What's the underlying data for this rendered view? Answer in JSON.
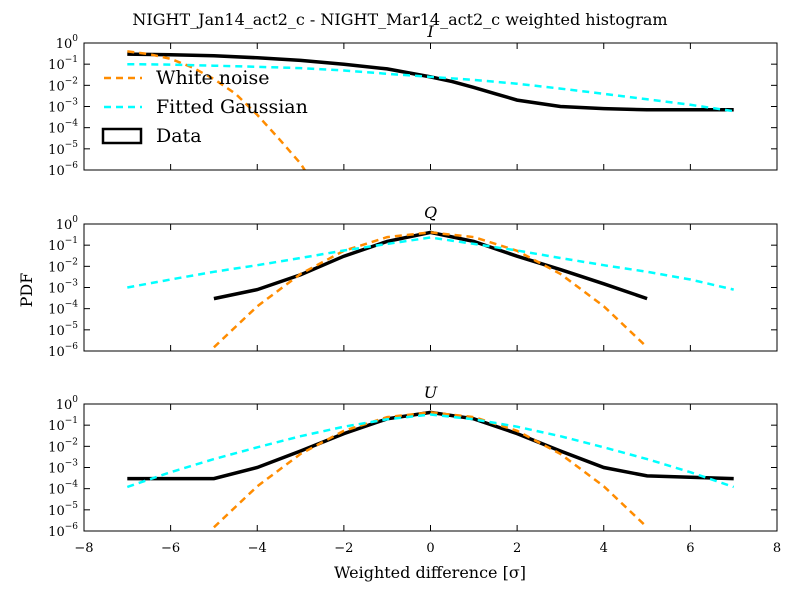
{
  "figure": {
    "suptitle": "NIGHT_Jan14_act2_c - NIGHT_Mar14_act2_c weighted histogram",
    "xlabel": "Weighted difference [σ]",
    "ylabel": "PDF"
  },
  "legend": {
    "placement": "upper-left of top panel",
    "entries": [
      {
        "label": "White noise",
        "style": "dashed",
        "color": "#ff8c00"
      },
      {
        "label": "Fitted Gaussian",
        "style": "dashed",
        "color": "#00ffff"
      },
      {
        "label": "Data",
        "style": "box",
        "color": "#000000"
      }
    ]
  },
  "chart_data": [
    {
      "type": "line",
      "title": "I",
      "yscale": "log",
      "xlim": [
        -8,
        8
      ],
      "ylim": [
        1e-06,
        1
      ],
      "x_ticks": [
        "−8",
        "−6",
        "−4",
        "−2",
        "0",
        "2",
        "4",
        "6",
        "8"
      ],
      "series": [
        {
          "name": "Data",
          "color": "#000000",
          "x": [
            -7,
            -6,
            -5,
            -4,
            -3,
            -2,
            -1,
            0,
            0.5,
            1,
            1.5,
            2,
            3,
            4,
            5,
            6,
            7
          ],
          "y": [
            0.3,
            0.28,
            0.25,
            0.2,
            0.15,
            0.1,
            0.06,
            0.025,
            0.015,
            0.008,
            0.004,
            0.002,
            0.001,
            0.0008,
            0.0007,
            0.0007,
            0.0007
          ]
        },
        {
          "name": "White noise",
          "color": "#ff8c00",
          "x": [
            -7,
            -6.5,
            -6,
            -5.5,
            -5,
            -4.5,
            -4,
            -3.5,
            -3,
            -2.5
          ],
          "y": [
            0.4,
            0.3,
            0.18,
            0.07,
            0.02,
            0.004,
            0.0004,
            3e-05,
            2e-06,
            5e-08
          ]
        },
        {
          "name": "Fitted Gaussian",
          "color": "#00ffff",
          "x": [
            -7,
            -6,
            -5,
            -4,
            -3,
            -2,
            -1,
            0,
            1,
            2,
            3,
            4,
            5,
            6,
            7
          ],
          "y": [
            0.1,
            0.095,
            0.085,
            0.075,
            0.065,
            0.05,
            0.035,
            0.025,
            0.018,
            0.012,
            0.007,
            0.004,
            0.0022,
            0.0012,
            0.0006
          ]
        }
      ]
    },
    {
      "type": "line",
      "title": "Q",
      "yscale": "log",
      "xlim": [
        -8,
        8
      ],
      "ylim": [
        1e-06,
        1
      ],
      "x_ticks": [
        "−8",
        "−6",
        "−4",
        "−2",
        "0",
        "2",
        "4",
        "6",
        "8"
      ],
      "series": [
        {
          "name": "Data",
          "color": "#000000",
          "x": [
            -5,
            -4,
            -3,
            -2,
            -1,
            0,
            1,
            2,
            3,
            4,
            5
          ],
          "y": [
            0.0003,
            0.0008,
            0.004,
            0.03,
            0.15,
            0.4,
            0.15,
            0.03,
            0.007,
            0.0015,
            0.0003
          ]
        },
        {
          "name": "White noise",
          "color": "#ff8c00",
          "x": [
            -5,
            -4,
            -3,
            -2,
            -1,
            0,
            1,
            2,
            3,
            4,
            5
          ],
          "y": [
            1.5e-06,
            0.00013,
            0.0044,
            0.054,
            0.24,
            0.4,
            0.24,
            0.054,
            0.0044,
            0.00013,
            1.5e-06
          ]
        },
        {
          "name": "Fitted Gaussian",
          "color": "#00ffff",
          "x": [
            -7,
            -6,
            -5,
            -4,
            -3,
            -2,
            -1,
            0,
            1,
            2,
            3,
            4,
            5,
            6,
            7
          ],
          "y": [
            0.001,
            0.0024,
            0.0055,
            0.0113,
            0.0248,
            0.056,
            0.115,
            0.23,
            0.115,
            0.056,
            0.0248,
            0.0113,
            0.0055,
            0.0024,
            0.0008
          ]
        }
      ]
    },
    {
      "type": "line",
      "title": "U",
      "yscale": "log",
      "xlim": [
        -8,
        8
      ],
      "ylim": [
        1e-06,
        1
      ],
      "x_ticks": [
        "−8",
        "−6",
        "−4",
        "−2",
        "0",
        "2",
        "4",
        "6",
        "8"
      ],
      "series": [
        {
          "name": "Data",
          "color": "#000000",
          "x": [
            -7,
            -5,
            -4,
            -3,
            -2,
            -1,
            0,
            1,
            2,
            3,
            4,
            5,
            7
          ],
          "y": [
            0.0003,
            0.0003,
            0.001,
            0.006,
            0.04,
            0.2,
            0.4,
            0.2,
            0.04,
            0.006,
            0.001,
            0.0004,
            0.0003
          ]
        },
        {
          "name": "White noise",
          "color": "#ff8c00",
          "x": [
            -5,
            -4,
            -3,
            -2,
            -1,
            0,
            1,
            2,
            3,
            4,
            5
          ],
          "y": [
            1.5e-06,
            0.00013,
            0.0044,
            0.054,
            0.24,
            0.4,
            0.24,
            0.054,
            0.0044,
            0.00013,
            1.5e-06
          ]
        },
        {
          "name": "Fitted Gaussian",
          "color": "#00ffff",
          "x": [
            -7,
            -6,
            -5,
            -4,
            -3,
            -2,
            -1,
            0,
            1,
            2,
            3,
            4,
            5,
            6,
            7
          ],
          "y": [
            0.00012,
            0.0006,
            0.0025,
            0.009,
            0.03,
            0.085,
            0.19,
            0.32,
            0.19,
            0.085,
            0.03,
            0.009,
            0.0025,
            0.0006,
            0.00012
          ]
        }
      ]
    }
  ]
}
